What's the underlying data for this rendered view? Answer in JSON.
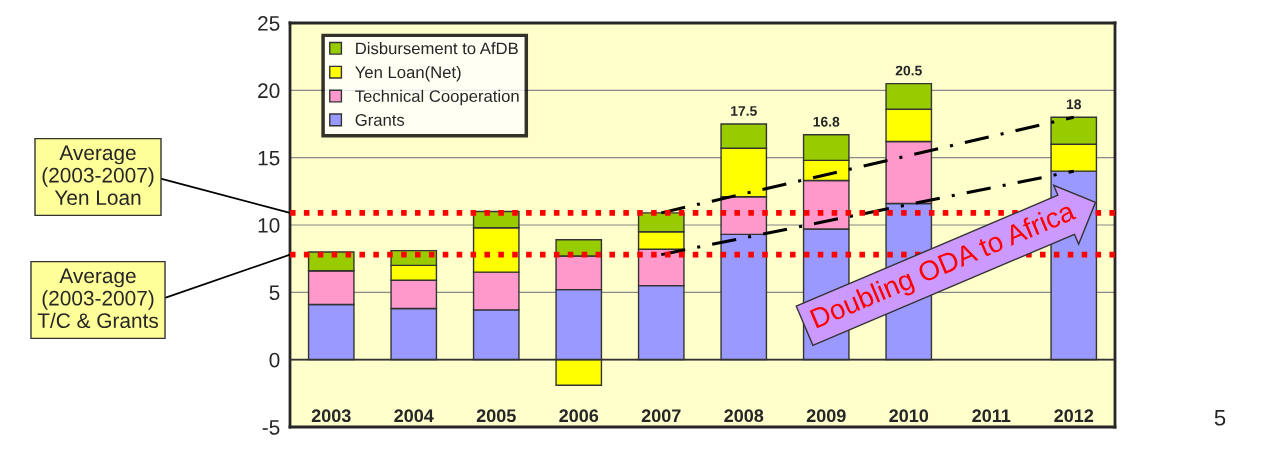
{
  "chart_data": {
    "type": "bar",
    "stacked": true,
    "categories": [
      "2003",
      "2004",
      "2005",
      "2006",
      "2007",
      "2008",
      "2009",
      "2010",
      "2011",
      "2012"
    ],
    "series": [
      {
        "name": "Grants",
        "color": "#9999ff",
        "values": [
          4.1,
          3.8,
          3.7,
          5.2,
          5.5,
          9.3,
          9.7,
          11.6,
          null,
          14.0
        ]
      },
      {
        "name": "Technical Cooperation",
        "color": "#ff99cc",
        "values": [
          2.5,
          2.1,
          2.8,
          2.5,
          2.7,
          2.8,
          3.6,
          4.6,
          null,
          null
        ]
      },
      {
        "name": "Yen Loan(Net)",
        "color": "#ffff00",
        "values": [
          0,
          1.1,
          3.3,
          -1.9,
          1.3,
          3.6,
          1.5,
          2.4,
          null,
          2.0
        ]
      },
      {
        "name": "Disbursement to AfDB",
        "color": "#99cc00",
        "values": [
          1.4,
          1.1,
          1.2,
          1.2,
          1.4,
          1.8,
          1.9,
          1.9,
          null,
          2.0
        ]
      },
      {
        "type": "line",
        "color": "#000000",
        "line_style": "dashed",
        "values": [
          null,
          null,
          null,
          null,
          10.9,
          null,
          null,
          null,
          null,
          18.0
        ]
      },
      {
        "type": "line",
        "color": "#000000",
        "line_style": "dashed",
        "values": [
          null,
          null,
          null,
          null,
          7.8,
          null,
          null,
          null,
          null,
          14.0
        ]
      }
    ],
    "totals": [
      null,
      null,
      null,
      null,
      null,
      "17.5",
      "16.8",
      "20.5",
      null,
      "18"
    ],
    "ylim": [
      -5,
      25
    ],
    "yticks": [
      -5,
      0,
      5,
      10,
      15,
      20,
      25
    ],
    "grid": "y",
    "legend": "top left",
    "ref_lines": [
      {
        "axis": "y",
        "value": 10.9,
        "label": "Average\n(2003-2007)\nYen Loan",
        "color": "#ff0000",
        "line_style": "dotted"
      },
      {
        "axis": "y",
        "value": 7.8,
        "label": "Average\n(2003-2007)\nT/C & Grants",
        "color": "#ff0000",
        "line_style": "dotted"
      }
    ],
    "annotations": [
      {
        "text": "Doubling ODA to Africa",
        "x": "2012",
        "y": 11
      },
      "5"
    ]
  }
}
